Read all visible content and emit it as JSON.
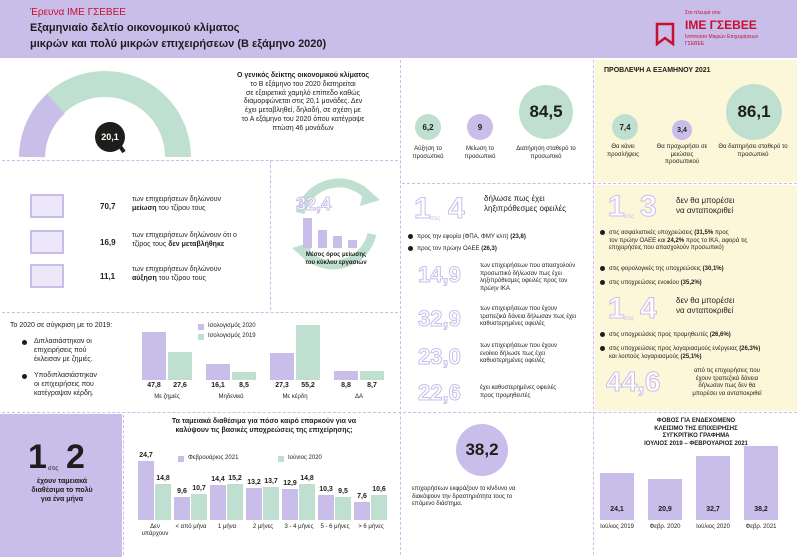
{
  "header": {
    "eyebrow": "Έρευνα ΙΜΕ ΓΣΕΒΕΕ",
    "title_line1": "Εξαμηνιαίο δελτίο οικονομικού κλίματος",
    "title_line2": "μικρών και πολύ μικρών επιχειρήσεων (Β εξάμηνο 2020)",
    "logo_small": "Στο πλευρό σου",
    "logo_name": "ΙΜΕ ΓΣΕΒΕΕ",
    "logo_sub1": "Ινστιτούτο Μικρών Επιχειρήσεων",
    "logo_sub2": "ΓΣΕΒΕΕ"
  },
  "climate": {
    "gauge_value": "20,1",
    "gauge_fraction": 0.2,
    "p1": "Ο γενικός δείκτης οικονομικού κλίματος",
    "p2": "το Β εξάμηνο του 2020 διατηρείται",
    "p3": "σε εξαιρετικά χαμηλό επίπεδο καθώς",
    "p4": "διαμορφώνεται στις 20,1 μονάδες. Δεν",
    "p5": "έχει μεταβληθεί, δηλαδή, σε σχέση με",
    "p6": "το Α εξάμηνο του 2020 όπου κατέγραψε",
    "p7": "πτώση 46 μονάδων"
  },
  "climate_circles": {
    "c1_value": "6,2",
    "c1_label": "Αύξηση το προσωπικό",
    "c2_value": "9",
    "c2_label": "Μείωση το προσωπικό",
    "c3_value": "84,5",
    "c3_label": "Διατήρηση σταθερό το προσωπικό"
  },
  "forecast": {
    "title": "ΠΡΟΒΛΕΨΗ Α ΕΞΑΜΗΝΟΥ 2021",
    "c1_value": "7,4",
    "c1_label": "Θα κάνει προσλήψεις",
    "c2_value": "3,4",
    "c2_label": "Θα προχωρήσει σε μειώσεις προσωπικού",
    "c3_value": "86,1",
    "c3_label": "Θα διατηρήσει σταθερό το προσωπικό"
  },
  "revenue": {
    "r1_value": "70,7",
    "r1_pre": "των επιχειρήσεων δηλώνουν",
    "r1_b": "μείωση",
    "r1_post": "του τζίρου τους",
    "r2_value": "16,9",
    "r2_pre": "των επιχειρήσεων δηλώνουν ότι ο",
    "r2_pre2": "τζίρος τους",
    "r2_b": "δεν μεταβλήθηκε",
    "r3_value": "11,1",
    "r3_pre": "των επιχειρήσεων δηλώνουν",
    "r3_b": "αύξηση",
    "r3_post": "του τζίρου τους"
  },
  "cycle": {
    "value": "32,4",
    "label1": "Μέσος όρος μείωσης",
    "label2": "του κύκλου εργασιών"
  },
  "debts": {
    "d1_big": "1",
    "d1_small": "στις",
    "d1_big2": "4",
    "d1_t1": "δήλωσε πως έχει",
    "d1_t2": "ληξιπρόθεσμες οφειλές",
    "b1": "προς την εφορία (ΦΠΑ, ΦΜΥ κλπ)",
    "b1v": "(23,8)",
    "b2": "προς τον πρώην ΟΑΕΕ",
    "b2v": "(26,3)",
    "n2": "14,9",
    "n2_t1": "των επιχειρήσεων που απασχολούν",
    "n2_t2": "προσωπικό δήλωσαν πως έχει",
    "n2_t3": "ληξιπρόθεσμες οφειλές προς τον",
    "n2_t4": "πρώην ΙΚΑ",
    "n3": "32,9",
    "n3_t1": "των επιχειρήσεων που έχουν",
    "n3_t2": "τραπεζικά δάνεια δήλωσαν πως έχει",
    "n3_t3": "καθυστερημένες οφειλές",
    "n4": "23,0",
    "n4_t1": "των επιχειρήσεων που έχουν",
    "n4_t2": "ενοίκιο δήλωσε πως έχει",
    "n4_t3": "καθυστερημένες οφειλές",
    "n5": "22,6",
    "n5_t1": "έχει καθυστερημένες οφειλές",
    "n5_t2": "προς προμηθευτές"
  },
  "cannot_pay": {
    "a_big": "1",
    "a_small": "στις",
    "a_big2": "3",
    "a_t1": "δεν θα μπορέσει",
    "a_t2": "να ανταποκριθεί",
    "a_b1a": "στις ασφαλιστικές υποχρεώσεις",
    "a_b1b": "(31,5%",
    "a_b1c": "προς",
    "a_b1d": "τον πρώην ΟΑΕΕ και",
    "a_b1e": "24,2%",
    "a_b1f": "προς το ΙΚΑ, αφορά τις",
    "a_b1g": "επιχειρήσεις που απασχολούν προσωπικό)",
    "a_b2": "στις φορολογικές της υποχρεώσεις",
    "a_b2v": "(30,1%)",
    "a_b3": "στις υποχρεώσεις ενοικίου",
    "a_b3v": "(35,2%)",
    "b_big": "1",
    "b_small": "στις",
    "b_big2": "4",
    "b_t1": "δεν θα μπορέσει",
    "b_t2": "να ανταποκριθεί",
    "b_b1": "στις υποχρεώσεις προς προμηθευτές",
    "b_b1v": "(26,6%)",
    "b_b2a": "στις υποχρεώσεις προς λογαριασμούς ενέργειας",
    "b_b2v": "(26,3%)",
    "b_b2b": "και λοιπούς λογαριασμούς",
    "b_b2w": "(25,1%)",
    "c_big": "44,6",
    "c_t1": "από τις επιχειρήσεις που",
    "c_t2": "έχουν τραπεζικά δάνεια",
    "c_t3": "δήλωσαν πως δεν θα",
    "c_t4": "μπορέσει να ανταποκριθεί"
  },
  "comparison": {
    "intro": "Το 2020 σε σύγκριση με το 2019:",
    "b1_l1": "Διπλασιάστηκαν οι",
    "b1_l2": "επιχειρήσεις πού",
    "b1_l3": "έκλεισαν με ζημιές.",
    "b2_l1": "Υποδιπλασιάστηκαν",
    "b2_l2": "οι επιχειρήσεις που",
    "b2_l3": "κατέγραψαν κέρδη.",
    "legend_2020": "Ισολογισμός 2020",
    "legend_2019": "Ισολογισμός 2019"
  },
  "chart_data": [
    {
      "type": "bar",
      "categories": [
        "Με ζημιές",
        "Μηδενικό",
        "Με κέρδη",
        "ΔΑ"
      ],
      "series": [
        {
          "name": "Ισολογισμός 2020",
          "values": [
            47.8,
            16.1,
            27.3,
            8.8
          ]
        },
        {
          "name": "Ισολογισμός 2019",
          "values": [
            27.6,
            8.5,
            55.2,
            8.7
          ]
        }
      ],
      "labels": [
        [
          "47,8",
          "27,6"
        ],
        [
          "16,1",
          "8,5"
        ],
        [
          "27,3",
          "55,2"
        ],
        [
          "8,8",
          "8,7"
        ]
      ]
    },
    {
      "type": "bar",
      "title_line1": "Τα ταμειακά διαθέσιμα για πόσο καιρό επαρκούν για να",
      "title_line2": "καλύψουν τις βασικές υποχρεώσεις της επιχείρησης;",
      "categories": [
        "Δεν υπάρχουν",
        "< από μήνα",
        "1 μήνα",
        "2 μήνες",
        "3 - 4 μήνες",
        "5 - 6 μήνες",
        "> 6 μήνες"
      ],
      "series": [
        {
          "name": "Φεβρουάριος 2021",
          "values": [
            24.7,
            9.6,
            14.4,
            13.2,
            12.9,
            10.3,
            7.6
          ]
        },
        {
          "name": "Ιούνιος 2020",
          "values": [
            14.8,
            10.7,
            15.2,
            13.7,
            14.8,
            9.5,
            10.6
          ]
        }
      ],
      "labels": [
        [
          "24,7",
          "14,8"
        ],
        [
          "9,6",
          "10,7"
        ],
        [
          "14,4",
          "15,2"
        ],
        [
          "13,2",
          "13,7"
        ],
        [
          "12,9",
          "14,8"
        ],
        [
          "10,3",
          "9,5"
        ],
        [
          "7,6",
          "10,6"
        ]
      ]
    },
    {
      "type": "bar",
      "title_line1": "ΦΟΒΟΣ ΓΙΑ ΕΝΔΕΧΟΜΕΝΟ",
      "title_line2": "ΚΛΕΙΣΙΜΟ ΤΗΣ ΕΠΙΧΕΙΡΗΣΗΣ",
      "title_line3": "ΣΥΓΚΡΙΤΙΚΟ ΓΡΑΦΗΜΑ",
      "title_line4": "ΙΟΥΛΙΟΣ 2019 – ΦΕΒΡΟΥΑΡΙΟΣ 2021",
      "categories": [
        "Ιούλιος 2019",
        "Φεβρ. 2020",
        "Ιούλιος 2020",
        "Φεβρ. 2021"
      ],
      "values": [
        24.1,
        20.9,
        32.7,
        38.2
      ],
      "labels": [
        "24,1",
        "20,9",
        "32,7",
        "38,2"
      ]
    }
  ],
  "cash": {
    "big1": "1",
    "small": "στις",
    "big2": "2",
    "t1": "έχουν ταμειακά",
    "t2": "διαθέσιμα το πολύ",
    "t3": "για ένα μήνα"
  },
  "closure": {
    "value": "38,2",
    "t1": "επιχειρήσεων εκφράζουν το κίνδυνο να",
    "t2": "διακόψουν την δραστηριότητα τους το",
    "t3": "επόμενο διάστημα."
  },
  "colors": {
    "lavender": "#c9bdea",
    "mint": "#bfe0d1",
    "cream": "#fdf7d9",
    "red": "#c8102e"
  }
}
